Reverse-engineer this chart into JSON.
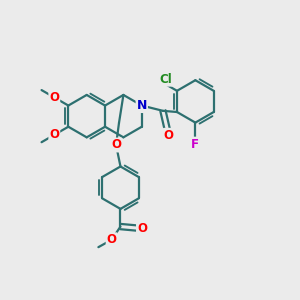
{
  "background_color": "#ebebeb",
  "bond_color": "#2d7070",
  "bond_width": 1.6,
  "atom_colors": {
    "O": "#ff0000",
    "N": "#0000cc",
    "Cl": "#228b22",
    "F": "#cc00cc"
  },
  "figsize": [
    3.0,
    3.0
  ],
  "dpi": 100
}
